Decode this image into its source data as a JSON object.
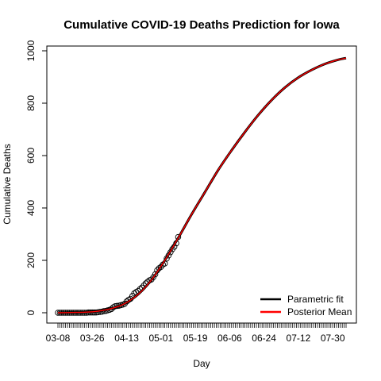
{
  "chart_data": {
    "type": "line",
    "title": "Cumulative COVID-19 Deaths Prediction for Iowa",
    "xlabel": "Day",
    "ylabel": "Cumulative Deaths",
    "xlim": [
      "2020-03-08",
      "2020-08-06"
    ],
    "ylim": [
      0,
      1000
    ],
    "x_tick_labels": [
      "03-08",
      "03-26",
      "04-13",
      "05-01",
      "05-19",
      "06-06",
      "06-24",
      "07-12",
      "07-30"
    ],
    "y_tick_labels": [
      "0",
      "200",
      "400",
      "600",
      "800",
      "1000"
    ],
    "grid": false,
    "legend_position": "bottom-right",
    "series": [
      {
        "name": "Parametric fit",
        "color": "#000000",
        "x": [
          "2020-03-08",
          "2020-03-15",
          "2020-03-22",
          "2020-03-29",
          "2020-04-05",
          "2020-04-12",
          "2020-04-19",
          "2020-04-26",
          "2020-05-03",
          "2020-05-10",
          "2020-05-17",
          "2020-05-24",
          "2020-05-31",
          "2020-06-07",
          "2020-06-14",
          "2020-06-21",
          "2020-06-28",
          "2020-07-05",
          "2020-07-12",
          "2020-07-19",
          "2020-07-26",
          "2020-08-02",
          "2020-08-06"
        ],
        "values": [
          0,
          1,
          2,
          6,
          16,
          35,
          70,
          125,
          200,
          285,
          375,
          460,
          545,
          620,
          690,
          755,
          812,
          860,
          898,
          927,
          950,
          966,
          972
        ]
      },
      {
        "name": "Posterior Mean",
        "color": "#ff0000",
        "x": [
          "2020-03-08",
          "2020-03-15",
          "2020-03-22",
          "2020-03-29",
          "2020-04-05",
          "2020-04-12",
          "2020-04-19",
          "2020-04-26",
          "2020-05-03",
          "2020-05-10",
          "2020-05-17",
          "2020-05-24",
          "2020-05-31",
          "2020-06-07",
          "2020-06-14",
          "2020-06-21",
          "2020-06-28",
          "2020-07-05",
          "2020-07-12",
          "2020-07-19",
          "2020-07-26",
          "2020-08-02",
          "2020-08-06"
        ],
        "values": [
          0,
          1,
          2,
          6,
          16,
          35,
          70,
          125,
          200,
          285,
          375,
          460,
          545,
          620,
          690,
          755,
          812,
          860,
          898,
          927,
          950,
          966,
          972
        ]
      }
    ],
    "observed": {
      "marker": "open-circle",
      "x": [
        "2020-03-08",
        "2020-03-09",
        "2020-03-10",
        "2020-03-11",
        "2020-03-12",
        "2020-03-13",
        "2020-03-14",
        "2020-03-15",
        "2020-03-16",
        "2020-03-17",
        "2020-03-18",
        "2020-03-19",
        "2020-03-20",
        "2020-03-21",
        "2020-03-22",
        "2020-03-23",
        "2020-03-24",
        "2020-03-25",
        "2020-03-26",
        "2020-03-27",
        "2020-03-28",
        "2020-03-29",
        "2020-03-30",
        "2020-03-31",
        "2020-04-01",
        "2020-04-02",
        "2020-04-03",
        "2020-04-04",
        "2020-04-05",
        "2020-04-06",
        "2020-04-07",
        "2020-04-08",
        "2020-04-09",
        "2020-04-10",
        "2020-04-11",
        "2020-04-12",
        "2020-04-13",
        "2020-04-14",
        "2020-04-15",
        "2020-04-16",
        "2020-04-17",
        "2020-04-18",
        "2020-04-19",
        "2020-04-20",
        "2020-04-21",
        "2020-04-22",
        "2020-04-23",
        "2020-04-24",
        "2020-04-25",
        "2020-04-26",
        "2020-04-27",
        "2020-04-28",
        "2020-04-29",
        "2020-04-30",
        "2020-05-01",
        "2020-05-02",
        "2020-05-03",
        "2020-05-04",
        "2020-05-05",
        "2020-05-06",
        "2020-05-07",
        "2020-05-08",
        "2020-05-09",
        "2020-05-10"
      ],
      "values": [
        0,
        0,
        0,
        0,
        0,
        0,
        0,
        0,
        0,
        0,
        0,
        0,
        0,
        0,
        0,
        0,
        1,
        1,
        1,
        1,
        1,
        2,
        3,
        4,
        6,
        7,
        9,
        11,
        14,
        21,
        25,
        26,
        27,
        29,
        31,
        34,
        43,
        49,
        53,
        64,
        74,
        79,
        83,
        90,
        96,
        104,
        112,
        118,
        124,
        127,
        136,
        147,
        162,
        170,
        175,
        184,
        188,
        207,
        219,
        231,
        243,
        252,
        265,
        289
      ]
    }
  },
  "legend": {
    "entries": [
      {
        "label": "Parametric fit",
        "color": "#000000"
      },
      {
        "label": "Posterior Mean",
        "color": "#ff0000"
      }
    ]
  }
}
